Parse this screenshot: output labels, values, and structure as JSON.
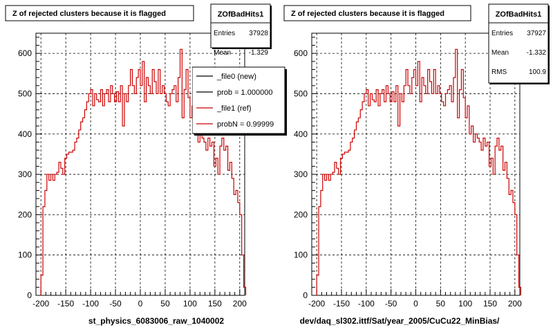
{
  "chart_data": [
    {
      "type": "histogram",
      "title": "Z of rejected clusters  because it is flagged",
      "xlabel": "st_physics_6083006_raw_1040002",
      "xlim": [
        -210,
        210
      ],
      "ylim": [
        0,
        650
      ],
      "x_ticks": [
        -200,
        -150,
        -100,
        -50,
        0,
        50,
        100,
        150,
        200
      ],
      "y_ticks": [
        0,
        100,
        200,
        300,
        400,
        500,
        600
      ],
      "grid": true,
      "stats": {
        "name": "ZOfBadHits1",
        "entries_label": "Entries",
        "entries": "37928",
        "mean_label": "Mean",
        "mean": "-1.329"
      },
      "legend": {
        "placement": "top-right",
        "entries": [
          {
            "label": "_file0 (new)",
            "color": "#000000"
          },
          {
            "label": "prob = 1.000000",
            "color": "#000000"
          },
          {
            "label": "_file1 (ref)",
            "color": "#cc0000"
          },
          {
            "label": "probN = 0.99999",
            "color": "#cc0000"
          }
        ]
      },
      "bin_width": 4,
      "x_start": -200,
      "values": [
        50,
        220,
        260,
        300,
        285,
        300,
        285,
        300,
        305,
        330,
        315,
        300,
        340,
        350,
        355,
        355,
        360,
        380,
        390,
        410,
        430,
        440,
        460,
        480,
        500,
        510,
        470,
        500,
        485,
        480,
        510,
        470,
        500,
        510,
        480,
        520,
        500,
        480,
        505,
        480,
        520,
        420,
        500,
        480,
        520,
        560,
        520,
        500,
        540,
        560,
        520,
        580,
        480,
        540,
        520,
        500,
        560,
        530,
        500,
        560,
        500,
        520,
        500,
        480,
        470,
        500,
        510,
        520,
        480,
        540,
        610,
        440,
        510,
        560,
        490,
        440,
        470,
        400,
        420,
        380,
        400,
        390,
        380,
        360,
        390,
        370,
        380,
        320,
        340,
        300,
        370,
        390,
        360,
        370,
        310,
        330,
        290,
        250,
        260,
        230,
        200,
        100,
        20
      ],
      "series_color": "#cc0000"
    },
    {
      "type": "histogram",
      "title": "Z of rejected clusters  because it is flagged",
      "xlabel": "dev/daq_sl302.ittf/Sat/year_2005/CuCu22_MinBias/",
      "xlim": [
        -210,
        210
      ],
      "ylim": [
        0,
        650
      ],
      "x_ticks": [
        -200,
        -150,
        -100,
        -50,
        0,
        50,
        100,
        150,
        200
      ],
      "y_ticks": [
        0,
        100,
        200,
        300,
        400,
        500,
        600
      ],
      "grid": true,
      "stats": {
        "name": "ZOfBadHits1",
        "entries_label": "Entries",
        "entries": "37927",
        "mean_label": "Mean",
        "mean": "-1.332",
        "rms_label": "RMS",
        "rms": "100.9"
      },
      "bin_width": 4,
      "x_start": -200,
      "values": [
        50,
        220,
        260,
        300,
        285,
        300,
        285,
        300,
        305,
        330,
        315,
        300,
        340,
        350,
        355,
        355,
        360,
        380,
        390,
        410,
        430,
        440,
        460,
        480,
        500,
        510,
        470,
        500,
        485,
        480,
        510,
        470,
        500,
        510,
        480,
        520,
        500,
        480,
        505,
        480,
        520,
        420,
        500,
        480,
        520,
        560,
        520,
        500,
        540,
        560,
        520,
        580,
        480,
        540,
        520,
        500,
        560,
        530,
        500,
        560,
        500,
        520,
        500,
        480,
        470,
        500,
        510,
        520,
        480,
        540,
        610,
        440,
        510,
        560,
        490,
        440,
        470,
        400,
        420,
        380,
        400,
        390,
        380,
        360,
        390,
        370,
        380,
        320,
        340,
        300,
        370,
        390,
        360,
        370,
        310,
        330,
        290,
        250,
        260,
        230,
        200,
        100,
        20
      ],
      "series_color": "#cc0000"
    }
  ]
}
